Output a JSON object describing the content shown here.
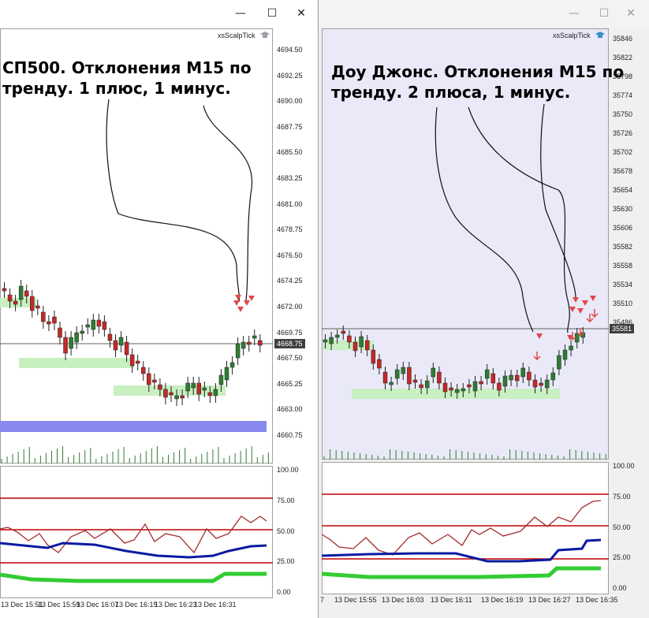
{
  "left": {
    "window_buttons": [
      "—",
      "☐",
      "✕"
    ],
    "indicator_name": "xsScalpTick",
    "annotation_line1": "СП500. Отклонения М15 по",
    "annotation_line2": "тренду. 1 плюс, 1 минус.",
    "price_axis": [
      "4694.50",
      "4692.25",
      "4690.00",
      "4687.75",
      "4685.50",
      "4683.25",
      "4681.00",
      "4678.75",
      "4676.50",
      "4674.25",
      "4672.00",
      "4669.75",
      "4667.50",
      "4665.25",
      "4663.00",
      "4660.75"
    ],
    "current_price": "4668.75",
    "osc_axis": [
      "100.00",
      "75.00",
      "50.00",
      "25.00",
      "0.00"
    ],
    "time_axis": [
      "13 Dec 15:51",
      "13 Dec 15:59",
      "13 Dec 16:07",
      "13 Dec 16:15",
      "13 Dec 16:23",
      "13 Dec 16:31"
    ]
  },
  "right": {
    "window_buttons": [
      "—",
      "☐",
      "✕"
    ],
    "indicator_name": "xsScalpTick",
    "annotation_line1": "Доу Джонс. Отклонения М15 по",
    "annotation_line2": "тренду. 2 плюса, 1 минус.",
    "price_axis": [
      "35846",
      "35822",
      "35798",
      "35774",
      "35750",
      "35726",
      "35702",
      "35678",
      "35654",
      "35630",
      "35606",
      "35582",
      "35558",
      "35534",
      "35510",
      "35486"
    ],
    "current_price": "35581",
    "osc_axis": [
      "100.00",
      "75.00",
      "50.00",
      "25.00",
      "0.00"
    ],
    "time_axis": [
      "7",
      "13 Dec 15:55",
      "13 Dec 16:03",
      "13 Dec 16:11",
      "13 Dec 16:19",
      "13 Dec 16:27",
      "13 Dec 16:35"
    ]
  },
  "colors": {
    "bull": "#2e7d32",
    "bear": "#c62828",
    "zone": "#c8f0c0",
    "blue_bar": "#8888ee",
    "level_line": "#c00000",
    "rsi_line": "#a52a2a",
    "trend_line": "#0a1aa0",
    "signal_line": "#33cc33",
    "arrow": "#e04848"
  }
}
